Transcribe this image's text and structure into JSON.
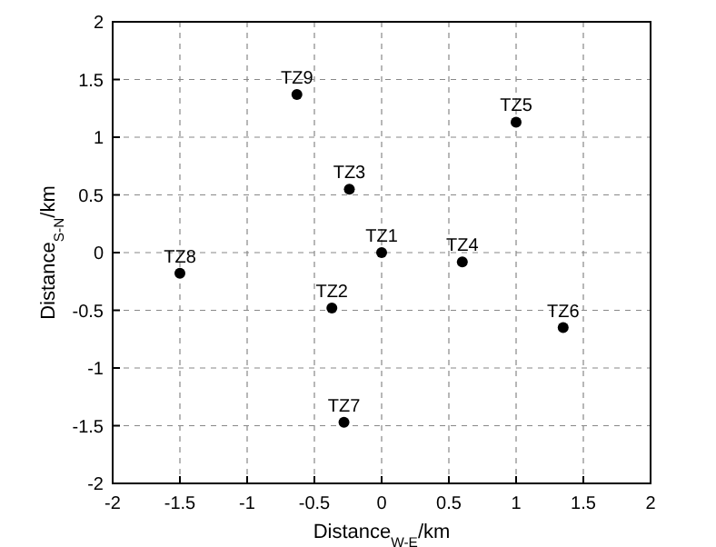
{
  "chart_data": {
    "type": "scatter",
    "xlabel": "Distance$_{W-E}$/km",
    "ylabel": "Distance$_{S-N}$/km",
    "x": [
      -0.63,
      1.0,
      -0.24,
      0,
      0.6,
      -1.5,
      -0.37,
      1.35,
      -0.28
    ],
    "series": [
      {
        "color": "#000000",
        "values": [
          1.37,
          1.13,
          0.55,
          0,
          -0.08,
          -0.18,
          -0.48,
          -0.65,
          -1.47
        ]
      }
    ],
    "marker": "circle",
    "grid": true,
    "xlim": [
      -2,
      2
    ],
    "xticks": [
      -2,
      -1.5,
      -1,
      -0.5,
      0,
      0.5,
      1,
      1.5,
      2
    ],
    "ylim": [
      -2,
      2
    ],
    "yticks": [
      -2,
      -1.5,
      -1,
      -0.5,
      0,
      0.5,
      1,
      1.5,
      2
    ],
    "annotations": [
      {
        "text": "TZ9",
        "x": -0.63,
        "y": 1.37
      },
      {
        "text": "TZ5",
        "x": 1.0,
        "y": 1.13
      },
      {
        "text": "TZ3",
        "x": -0.24,
        "y": 0.55
      },
      {
        "text": "TZ1",
        "x": 0,
        "y": 0
      },
      {
        "text": "TZ4",
        "x": 0.6,
        "y": -0.08
      },
      {
        "text": "TZ8",
        "x": -1.5,
        "y": -0.18
      },
      {
        "text": "TZ2",
        "x": -0.37,
        "y": -0.48
      },
      {
        "text": "TZ6",
        "x": 1.35,
        "y": -0.65
      },
      {
        "text": "TZ7",
        "x": -0.28,
        "y": -1.47
      }
    ]
  }
}
